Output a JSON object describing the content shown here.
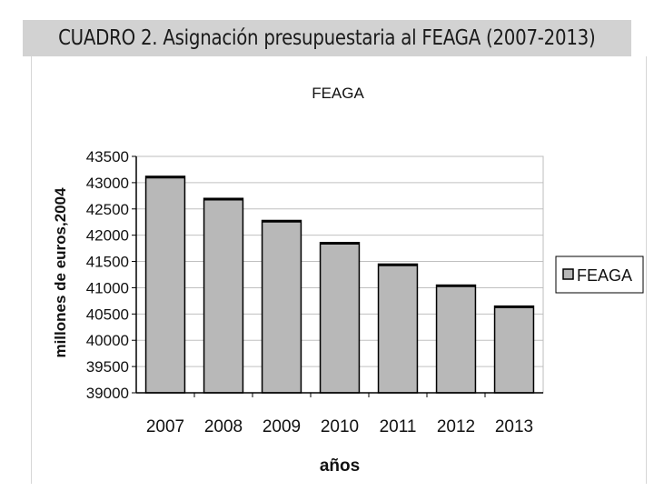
{
  "header": {
    "title": "CUADRO 2. Asignación presupuestaria al FEAGA (2007-2013)"
  },
  "chart_data": {
    "type": "bar",
    "title": "FEAGA",
    "xlabel": "años",
    "ylabel": "millones de euros,2004",
    "categories": [
      "2007",
      "2008",
      "2009",
      "2010",
      "2011",
      "2012",
      "2013"
    ],
    "series": [
      {
        "name": "FEAGA",
        "values": [
          43120,
          42700,
          42280,
          41860,
          41450,
          41050,
          40650
        ]
      }
    ],
    "ylim": [
      39000,
      43500
    ],
    "yticks": [
      "43500",
      "43000",
      "42500",
      "42000",
      "41500",
      "41000",
      "40500",
      "40000",
      "39500",
      "39000"
    ],
    "grid": true,
    "legend_position": "right",
    "colors": {
      "bar": "#b8b8b8",
      "bar_edge": "#000000",
      "grid": "#c0c0c0"
    }
  }
}
